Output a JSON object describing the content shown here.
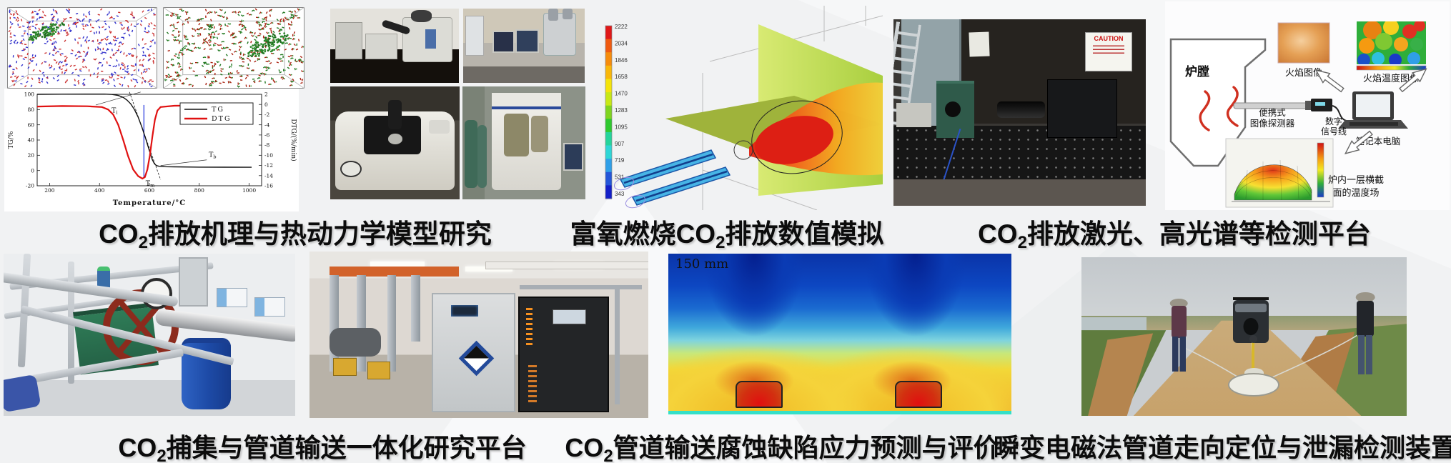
{
  "background": {
    "base": "#f1f2f3"
  },
  "captions": {
    "mechanism": {
      "pre": "CO",
      "sub": "2",
      "post": "排放机理与热动力学模型研究"
    },
    "oxyfuel": {
      "pre": "富氧燃烧CO",
      "sub": "2",
      "post": "排放数值模拟"
    },
    "laser": {
      "pre": "CO",
      "sub": "2",
      "post": "排放激光、高光谱等检测平台"
    },
    "capture": {
      "pre": "CO",
      "sub": "2",
      "post": "捕集与管道输送一体化研究平台"
    },
    "corrosion": {
      "pre": "CO",
      "sub": "2",
      "post": "管道输送腐蚀缺陷应力预测与评价"
    },
    "tem": {
      "pre": "",
      "sub": "",
      "post": "瞬变电磁法管道走向定位与泄漏检测装置"
    }
  },
  "chart_data": [
    {
      "id": "tg_dtg",
      "type": "line",
      "title": "",
      "xlabel": "Temperature/°C",
      "ylabel_left": "TG/%",
      "ylabel_right": "DTG/(%/min)",
      "xlim": [
        150,
        1050
      ],
      "xticks": [
        200,
        400,
        600,
        800,
        1000
      ],
      "ylim_left": [
        -20,
        100
      ],
      "yticks_left": [
        -20,
        0,
        20,
        40,
        60,
        80,
        100
      ],
      "ylim_right": [
        -16,
        2
      ],
      "yticks_right": [
        2,
        0,
        -2,
        -4,
        -6,
        -8,
        -10,
        -12,
        -14,
        -16
      ],
      "legend": [
        "TG",
        "DTG"
      ],
      "legend_colors": [
        "#111111",
        "#e01111"
      ],
      "grid": false,
      "series": [
        {
          "name": "TG",
          "color": "#111111",
          "axis": "left",
          "points": [
            [
              150,
              100
            ],
            [
              250,
              100.2
            ],
            [
              350,
              100.3
            ],
            [
              420,
              100.3
            ],
            [
              450,
              99.8
            ],
            [
              475,
              98.5
            ],
            [
              495,
              96
            ],
            [
              510,
              92.5
            ],
            [
              525,
              87.5
            ],
            [
              540,
              80
            ],
            [
              555,
              70
            ],
            [
              570,
              57
            ],
            [
              585,
              42
            ],
            [
              600,
              26
            ],
            [
              612,
              14
            ],
            [
              620,
              9
            ],
            [
              628,
              6.5
            ],
            [
              640,
              5.5
            ],
            [
              660,
              5
            ],
            [
              700,
              4.8
            ],
            [
              800,
              4.5
            ],
            [
              900,
              4.4
            ],
            [
              1010,
              4.3
            ]
          ]
        },
        {
          "name": "DTG",
          "color": "#e01111",
          "axis": "right",
          "points": [
            [
              150,
              -0.4
            ],
            [
              250,
              -0.3
            ],
            [
              350,
              -0.35
            ],
            [
              410,
              -0.5
            ],
            [
              435,
              -1
            ],
            [
              455,
              -2
            ],
            [
              475,
              -4
            ],
            [
              495,
              -7
            ],
            [
              515,
              -10.2
            ],
            [
              535,
              -12.8
            ],
            [
              555,
              -14.1
            ],
            [
              572,
              -14.6
            ],
            [
              582,
              -14.3
            ],
            [
              592,
              -12.8
            ],
            [
              602,
              -10
            ],
            [
              612,
              -6.3
            ],
            [
              622,
              -3
            ],
            [
              632,
              -1.2
            ],
            [
              645,
              -0.5
            ],
            [
              700,
              -0.25
            ],
            [
              800,
              -0.2
            ],
            [
              900,
              -0.25
            ],
            [
              1005,
              -0.6
            ]
          ]
        }
      ],
      "annotations": [
        {
          "main": "T",
          "sub": "i"
        },
        {
          "main": "T",
          "sub": "m"
        },
        {
          "main": "T",
          "sub": "b"
        }
      ],
      "marker_line_x": 578
    },
    {
      "id": "cfd_colorbar",
      "type": "heatmap",
      "colorbar_ticks": [
        "2222",
        "2034",
        "1846",
        "1658",
        "1470",
        "1283",
        "1095",
        "907",
        "719",
        "531",
        "343"
      ],
      "colorbar_colors_top_to_bottom": [
        "#e01818",
        "#ef5a10",
        "#f68c0c",
        "#f9b70a",
        "#f5e40a",
        "#c8e816",
        "#7fd41f",
        "#2fc92f",
        "#25d49b",
        "#2fd6d6",
        "#2f9fe8",
        "#2456d8",
        "#1420c8"
      ]
    }
  ],
  "furnace_diagram": {
    "chamber": "炉膛",
    "flame_image": "火焰图像",
    "flame_temp_image": "火焰温度图像",
    "detector_line1": "便携式",
    "detector_line2": "图像探测器",
    "signal_line1": "数字",
    "signal_line2": "信号线",
    "laptop": "笔记本电脑",
    "temp_field_line1": "炉内一层横截",
    "temp_field_line2": "面的温度场"
  },
  "laser_photo": {
    "caution_sign": "CAUTION"
  },
  "corrosion_map": {
    "scale_label": "150 mm"
  }
}
